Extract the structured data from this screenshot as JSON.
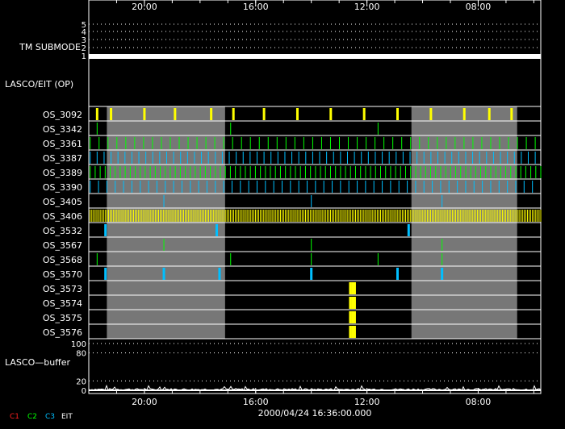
{
  "chart_data": {
    "type": "timeline",
    "time_axis": {
      "direction": "reversed",
      "ticks": [
        "20:00",
        "16:00",
        "12:00",
        "08:00"
      ]
    },
    "tm_submode": {
      "label": "TM SUBMODE",
      "levels": [
        "5",
        "4",
        "3",
        "2",
        "1"
      ],
      "active_level": "1"
    },
    "section_label": "LASCO/EIT (OP)",
    "gray_periods": [
      {
        "from_hour": 21.35,
        "to_hour": 17.1
      },
      {
        "from_hour": 10.4,
        "to_hour": 6.6
      }
    ],
    "rows": [
      {
        "name": "OS_3092",
        "color": "#ffff00",
        "events_hour": [
          21.7,
          21.2,
          20.0,
          18.9,
          17.6,
          16.8,
          15.7,
          14.5,
          13.3,
          12.1,
          10.9,
          9.7,
          8.5,
          7.6,
          6.8
        ]
      },
      {
        "name": "OS_3342",
        "color": "#00ff00",
        "events_hour": [
          21.7,
          16.9,
          11.6
        ]
      },
      {
        "name": "OS_3361",
        "color": "#00ff00",
        "pattern": "dense",
        "spacing_hour": 0.32
      },
      {
        "name": "OS_3387",
        "color": "#00bfff",
        "pattern": "dense",
        "spacing_hour": 0.25
      },
      {
        "name": "OS_3389",
        "color": "#00ff00",
        "pattern": "dense",
        "spacing_hour": 0.18
      },
      {
        "name": "OS_3390",
        "color": "#00bfff",
        "pattern": "dense",
        "spacing_hour": 0.3
      },
      {
        "name": "OS_3405",
        "color": "#00bfff",
        "events_hour": [
          19.3,
          14.0,
          9.3
        ]
      },
      {
        "name": "OS_3406",
        "color": "#ffff00",
        "pattern": "dense",
        "spacing_hour": 0.06
      },
      {
        "name": "OS_3532",
        "color": "#00bfff",
        "events_hour": [
          21.4,
          17.4,
          10.5
        ]
      },
      {
        "name": "OS_3567",
        "color": "#00ff00",
        "events_hour": [
          19.3,
          14.0,
          9.3
        ]
      },
      {
        "name": "OS_3568",
        "color": "#00ff00",
        "events_hour": [
          21.7,
          16.9,
          14.0,
          11.6,
          9.3
        ]
      },
      {
        "name": "OS_3570",
        "color": "#00bfff",
        "events_hour": [
          21.4,
          19.3,
          17.3,
          14.0,
          10.9,
          9.3
        ]
      },
      {
        "name": "OS_3573",
        "color": "#ffff00",
        "events_hour": [
          12.6,
          12.52,
          12.44
        ]
      },
      {
        "name": "OS_3574",
        "color": "#ffff00",
        "events_hour": [
          12.6,
          12.52,
          12.44
        ]
      },
      {
        "name": "OS_3575",
        "color": "#ffff00",
        "events_hour": [
          12.6,
          12.52,
          12.44
        ]
      },
      {
        "name": "OS_3576",
        "color": "#ffff00",
        "events_hour": [
          12.6,
          12.52,
          12.44
        ]
      }
    ],
    "buffer": {
      "label": "LASCO—buffer",
      "y_ticks": [
        "100",
        "80",
        "20",
        "0"
      ],
      "ylim": [
        0,
        100
      ],
      "typical_level": 4
    },
    "date_label": "2000/04/24 16:36:00.000",
    "legend": [
      {
        "text": "C1",
        "color": "#ff2020"
      },
      {
        "text": "C2",
        "color": "#00ff00"
      },
      {
        "text": "C3",
        "color": "#00bfff"
      },
      {
        "text": "EIT",
        "color": "#ffffff"
      }
    ]
  }
}
